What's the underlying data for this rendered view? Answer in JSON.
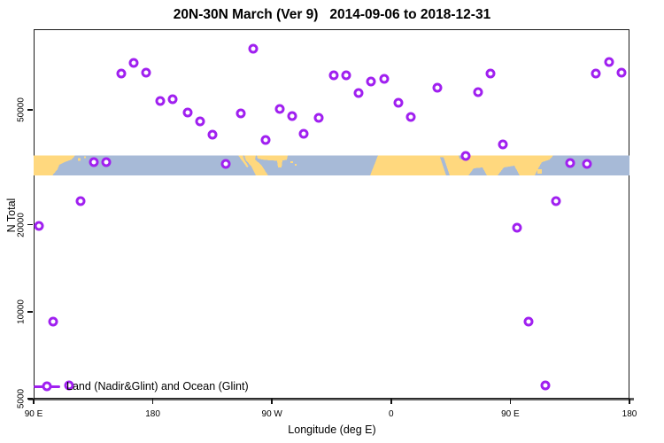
{
  "title": "20N-30N March (Ver 9)   2014-09-06 to 2018-12-31",
  "legend": {
    "label": "Land (Nadir&Glint) and Ocean (Glint)"
  },
  "colors": {
    "point": "#A020F0",
    "land": "#FFD87E",
    "ocean": "#A7BAD7",
    "axis_line": "#5f5f5f",
    "box": "#1a1a1a"
  },
  "chart_data": {
    "type": "scatter",
    "title": "20N-30N March (Ver 9)   2014-09-06 to 2018-12-31",
    "xlabel": "Longitude (deg E)",
    "ylabel": "N Total",
    "x_axis": {
      "scale": "linear",
      "lim": [
        90,
        540
      ],
      "ticks": [
        {
          "label": "90 E",
          "lon": 90
        },
        {
          "label": "180",
          "lon": 180
        },
        {
          "label": "90 W",
          "lon": 270
        },
        {
          "label": "0",
          "lon": 360
        },
        {
          "label": "90 E",
          "lon": 450
        },
        {
          "label": "180",
          "lon": 540
        }
      ],
      "note": "longitude wraps around the globe 1.25 times: 90E to 180 to 90W to 0 to 90E to 180"
    },
    "y_axis": {
      "scale": "log10",
      "lim": [
        5000,
        95100
      ],
      "ticks": [
        5000,
        10000,
        20000,
        50000
      ]
    },
    "map_strip": {
      "description": "20N-30N latitude land/ocean map band drawn across plot",
      "value_top": 34800,
      "value_bottom": 29600
    },
    "legend_position": "bottom-left",
    "grid": false,
    "series": [
      {
        "name": "Land (Nadir&Glint) and Ocean (Glint)",
        "marker": "open-circle",
        "points": [
          [
            94.0,
            19800
          ],
          [
            104.7,
            9250
          ],
          [
            116.7,
            5560
          ],
          [
            125.4,
            24200
          ],
          [
            135.5,
            33000
          ],
          [
            144.8,
            33000
          ],
          [
            156.2,
            66800
          ],
          [
            165.6,
            72800
          ],
          [
            174.9,
            67300
          ],
          [
            185.6,
            53700
          ],
          [
            195.0,
            54400
          ],
          [
            206.3,
            49000
          ],
          [
            215.7,
            45700
          ],
          [
            225.1,
            41000
          ],
          [
            235.1,
            32500
          ],
          [
            246.5,
            48600
          ],
          [
            255.8,
            81400
          ],
          [
            265.2,
            39400
          ],
          [
            275.9,
            50400
          ],
          [
            285.2,
            47600
          ],
          [
            293.9,
            41300
          ],
          [
            305.3,
            46900
          ],
          [
            316.6,
            65900
          ],
          [
            326.0,
            65900
          ],
          [
            335.4,
            57100
          ],
          [
            344.7,
            62600
          ],
          [
            354.8,
            64000
          ],
          [
            365.5,
            52900
          ],
          [
            374.9,
            47300
          ],
          [
            394.9,
            59700
          ],
          [
            416.3,
            34600
          ],
          [
            425.7,
            57600
          ],
          [
            435.0,
            66800
          ],
          [
            444.4,
            38000
          ],
          [
            455.1,
            19500
          ],
          [
            463.8,
            9250
          ],
          [
            476.5,
            5560
          ],
          [
            484.5,
            24200
          ],
          [
            495.2,
            32700
          ],
          [
            508.0,
            32500
          ],
          [
            514.6,
            66800
          ],
          [
            524.6,
            73300
          ],
          [
            534.0,
            67300
          ]
        ]
      }
    ]
  }
}
